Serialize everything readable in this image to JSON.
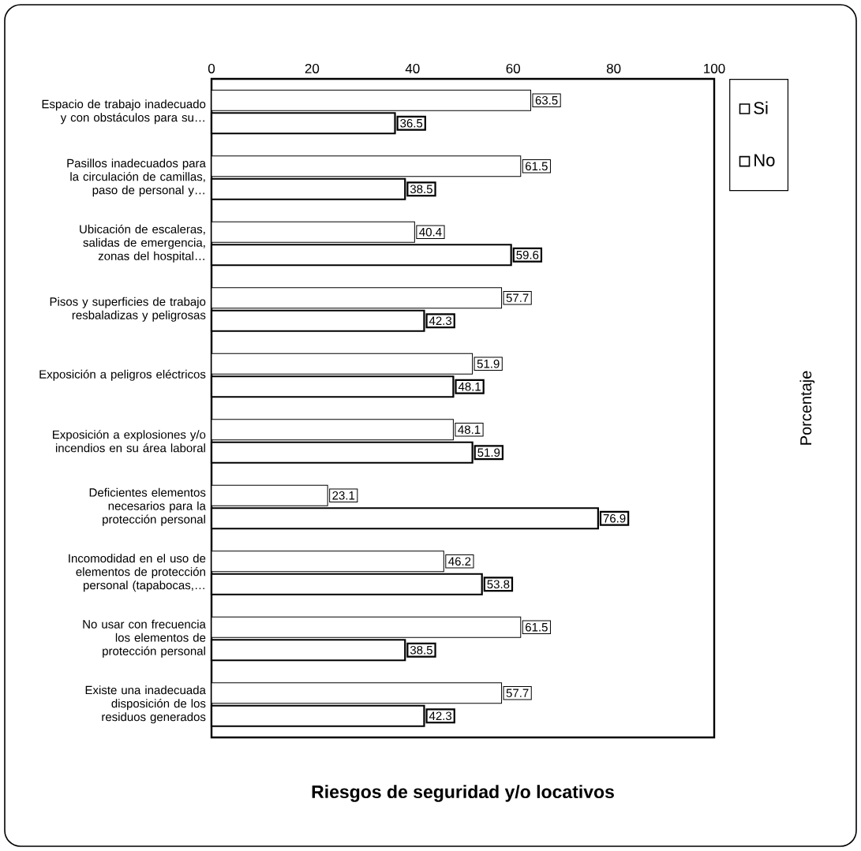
{
  "chart_data": {
    "type": "bar",
    "orientation": "horizontal",
    "title": "Riesgos de seguridad y/o locativos",
    "annotations": [
      "Porcentaje"
    ],
    "categories": [
      "Espacio de trabajo inadecuado y con obstáculos para su…",
      "Pasillos inadecuados para la circulación de camillas, paso de personal y…",
      "Ubicación de escaleras, salidas de emergencia, zonas del hospital…",
      "Pisos y superficies de trabajo resbaladizas y peligrosas",
      "Exposición a peligros eléctricos",
      "Exposición a explosiones y/o incendios en su área laboral",
      "Deficientes elementos necesarios para la protección personal",
      "Incomodidad en el uso de elementos de protección personal (tapabocas,…",
      "No usar con frecuencia los elementos de protección personal",
      "Existe una inadecuada disposición de los residuos generados"
    ],
    "series": [
      {
        "name": "Si",
        "color": "#ffffff",
        "values": [
          63.5,
          61.5,
          40.4,
          57.7,
          51.9,
          48.1,
          23.1,
          46.2,
          61.5,
          57.7
        ]
      },
      {
        "name": "No",
        "color": "#ffffff",
        "values": [
          36.5,
          38.5,
          59.6,
          42.3,
          48.1,
          51.9,
          76.9,
          53.8,
          38.5,
          42.3
        ]
      }
    ],
    "xlim": [
      0,
      100
    ],
    "xticks": [
      0,
      20,
      40,
      60,
      80,
      100
    ],
    "data_labels": true,
    "legend": "right",
    "grid": false
  }
}
